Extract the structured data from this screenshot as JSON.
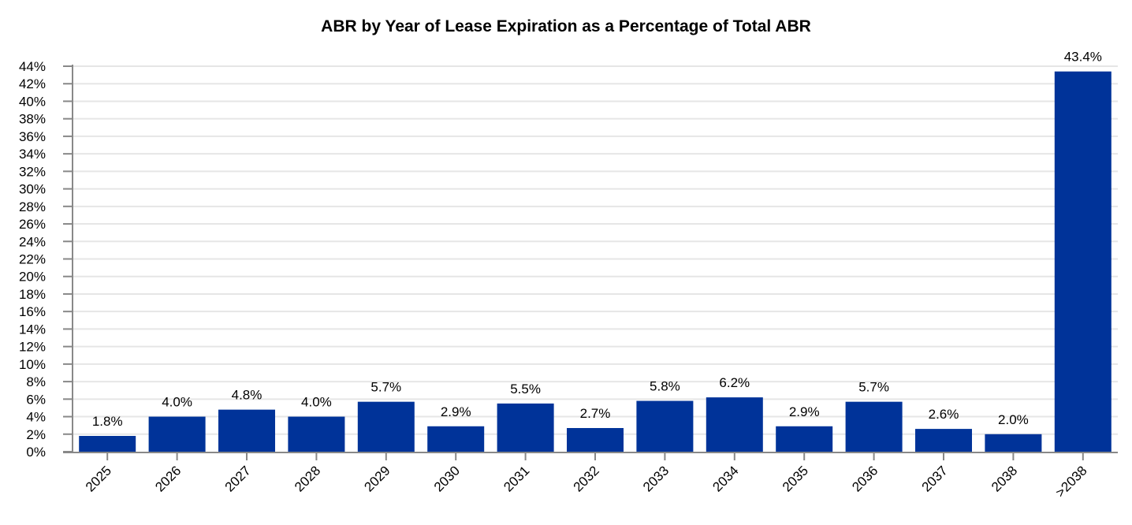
{
  "chart_data": {
    "type": "bar",
    "title": "ABR by Year of Lease Expiration as a Percentage of Total ABR",
    "xlabel": "",
    "ylabel": "",
    "categories": [
      "2025",
      "2026",
      "2027",
      "2028",
      "2029",
      "2030",
      "2031",
      "2032",
      "2033",
      "2034",
      "2035",
      "2036",
      "2037",
      "2038",
      ">2038"
    ],
    "values": [
      1.8,
      4.0,
      4.8,
      4.0,
      5.7,
      2.9,
      5.5,
      2.7,
      5.8,
      6.2,
      2.9,
      5.7,
      2.6,
      2.0,
      43.4
    ],
    "data_labels": [
      "1.8%",
      "4.0%",
      "4.8%",
      "4.0%",
      "5.7%",
      "2.9%",
      "5.5%",
      "2.7%",
      "5.8%",
      "6.2%",
      "2.9%",
      "5.7%",
      "2.6%",
      "2.0%",
      "43.4%"
    ],
    "ylim": [
      0,
      44
    ],
    "yticks": [
      "0%",
      "2%",
      "4%",
      "6%",
      "8%",
      "10%",
      "12%",
      "14%",
      "16%",
      "18%",
      "20%",
      "22%",
      "24%",
      "26%",
      "28%",
      "30%",
      "32%",
      "34%",
      "36%",
      "38%",
      "40%",
      "42%",
      "44%"
    ],
    "grid": true,
    "legend": "none",
    "bar_color": "#003399"
  }
}
